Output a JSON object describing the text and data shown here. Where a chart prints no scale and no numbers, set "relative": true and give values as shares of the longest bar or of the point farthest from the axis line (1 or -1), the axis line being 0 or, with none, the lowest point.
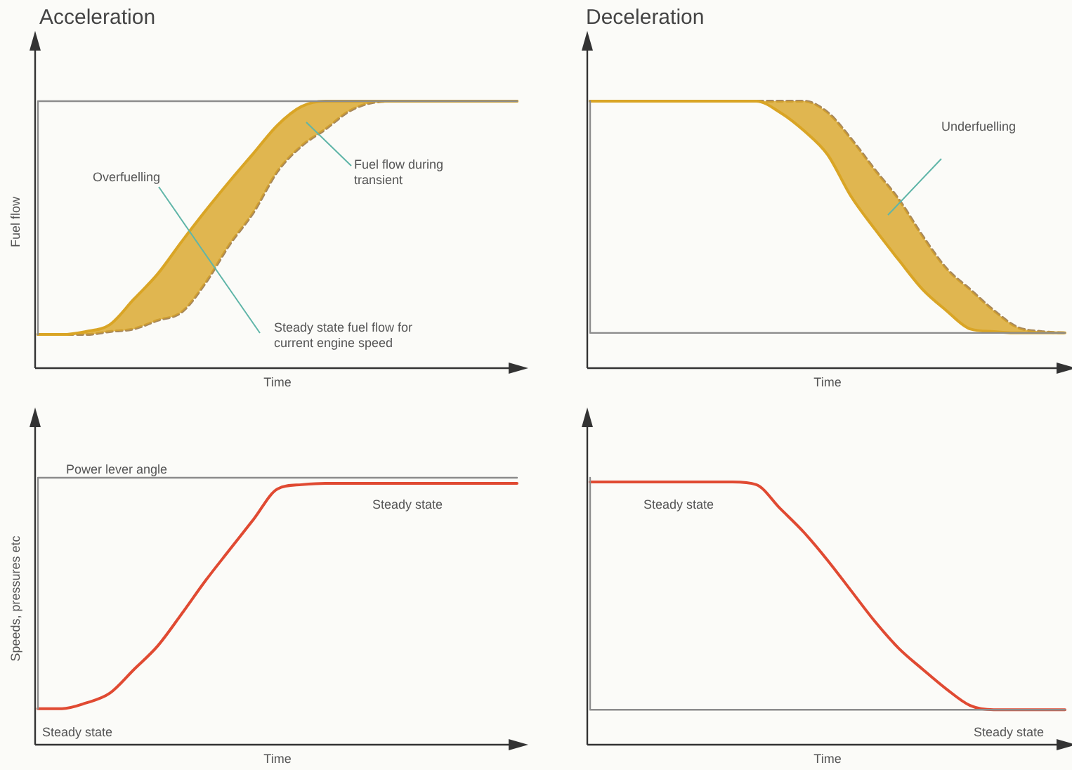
{
  "chart_data": [
    {
      "type": "line",
      "relative": true,
      "title": "Acceleration",
      "xlabel": "Time",
      "ylabel": "Fuel flow",
      "categories": [
        null,
        null,
        null,
        null,
        null,
        null,
        null,
        null,
        null,
        null,
        null,
        null,
        null,
        null,
        null,
        null,
        null,
        null,
        null,
        null,
        null
      ],
      "series": [
        {
          "type": "step",
          "color": "#8c8c8c",
          "values": [
            0.126,
            1,
            1,
            1,
            1,
            1,
            1,
            1,
            1,
            1,
            1,
            1,
            1,
            1,
            1,
            1,
            1,
            1,
            1,
            1,
            1
          ]
        },
        {
          "color": "#d9a526",
          "values": [
            0.126,
            0.126,
            0.137,
            0.163,
            0.258,
            0.353,
            0.474,
            0.59,
            0.7,
            0.805,
            0.91,
            0.98,
            1,
            1,
            1,
            1,
            1,
            1,
            1,
            1,
            1
          ],
          "lower": [
            0.126,
            0.126,
            0.126,
            0.137,
            0.147,
            0.179,
            0.21,
            0.32,
            0.463,
            0.584,
            0.737,
            0.832,
            0.895,
            0.963,
            0.995,
            1,
            1,
            1,
            1,
            1,
            1
          ],
          "upper": [
            0.126,
            0.126,
            0.137,
            0.163,
            0.258,
            0.353,
            0.474,
            0.59,
            0.7,
            0.805,
            0.91,
            0.98,
            1,
            1,
            1,
            1,
            1,
            1,
            1,
            1,
            1
          ]
        },
        {
          "color": "#a8885a",
          "line_style": "dashed",
          "values": [
            0.126,
            0.126,
            0.126,
            0.137,
            0.147,
            0.179,
            0.21,
            0.32,
            0.463,
            0.584,
            0.737,
            0.832,
            0.895,
            0.963,
            0.995,
            1,
            1,
            1,
            1,
            1,
            1
          ]
        }
      ],
      "annotations": [
        "Overfuelling",
        "Fuel flow during transient",
        "Steady state fuel flow for current engine speed"
      ]
    },
    {
      "type": "line",
      "relative": true,
      "title": "Deceleration",
      "xlabel": "Time",
      "categories": [
        null,
        null,
        null,
        null,
        null,
        null,
        null,
        null,
        null,
        null,
        null,
        null,
        null,
        null,
        null,
        null,
        null,
        null,
        null,
        null,
        null
      ],
      "series": [
        {
          "type": "step",
          "color": "#8c8c8c",
          "values": [
            1,
            0.132,
            0.132,
            0.132,
            0.132,
            0.132,
            0.132,
            0.132,
            0.132,
            0.132,
            0.132,
            0.132,
            0.132,
            0.132,
            0.132,
            0.132,
            0.132,
            0.132,
            0.132,
            0.132,
            0.132
          ]
        },
        {
          "color": "#d9a526",
          "values": [
            1,
            1,
            1,
            1,
            1,
            1,
            1,
            1,
            0.958,
            0.89,
            0.8,
            0.642,
            0.52,
            0.405,
            0.295,
            0.216,
            0.147,
            0.137,
            0.132,
            0.132,
            0.132
          ],
          "lower": [
            1,
            1,
            1,
            1,
            1,
            1,
            1,
            1,
            0.958,
            0.89,
            0.8,
            0.642,
            0.52,
            0.405,
            0.295,
            0.216,
            0.147,
            0.137,
            0.132,
            0.132,
            0.132
          ],
          "upper": [
            1,
            1,
            1,
            1,
            1,
            1,
            1,
            1,
            1,
            1,
            0.958,
            0.858,
            0.742,
            0.632,
            0.495,
            0.374,
            0.295,
            0.216,
            0.153,
            0.137,
            0.132
          ]
        },
        {
          "color": "#a8885a",
          "line_style": "dashed",
          "values": [
            1,
            1,
            1,
            1,
            1,
            1,
            1,
            1,
            1,
            1,
            0.958,
            0.858,
            0.742,
            0.632,
            0.495,
            0.374,
            0.295,
            0.216,
            0.153,
            0.137,
            0.132
          ]
        }
      ],
      "annotations": [
        "Underfuelling"
      ]
    },
    {
      "type": "line",
      "relative": true,
      "xlabel": "Time",
      "ylabel": "Speeds, pressures etc",
      "categories": [
        null,
        null,
        null,
        null,
        null,
        null,
        null,
        null,
        null,
        null,
        null,
        null,
        null,
        null,
        null,
        null,
        null,
        null,
        null,
        null,
        null
      ],
      "series": [
        {
          "type": "step",
          "color": "#8c8c8c",
          "values": [
            0.135,
            1,
            1,
            1,
            1,
            1,
            1,
            1,
            1,
            1,
            1,
            1,
            1,
            1,
            1,
            1,
            1,
            1,
            1,
            1,
            1
          ]
        },
        {
          "color": "#e04a32",
          "values": [
            0.135,
            0.135,
            0.156,
            0.193,
            0.281,
            0.37,
            0.49,
            0.615,
            0.73,
            0.844,
            0.958,
            0.974,
            0.979,
            0.979,
            0.979,
            0.979,
            0.979,
            0.979,
            0.979,
            0.979,
            0.979
          ]
        }
      ],
      "annotations": [
        "Power lever angle",
        "Steady state",
        "Steady state"
      ]
    },
    {
      "type": "line",
      "relative": true,
      "xlabel": "Time",
      "categories": [
        null,
        null,
        null,
        null,
        null,
        null,
        null,
        null,
        null,
        null,
        null,
        null,
        null,
        null,
        null,
        null,
        null,
        null,
        null,
        null,
        null
      ],
      "series": [
        {
          "type": "step",
          "color": "#8c8c8c",
          "values": [
            1,
            0.131,
            0.131,
            0.131,
            0.131,
            0.131,
            0.131,
            0.131,
            0.131,
            0.131,
            0.131,
            0.131,
            0.131,
            0.131,
            0.131,
            0.131,
            0.131,
            0.131,
            0.131,
            0.131,
            0.131
          ]
        },
        {
          "color": "#e04a32",
          "values": [
            0.984,
            0.984,
            0.984,
            0.984,
            0.984,
            0.984,
            0.984,
            0.974,
            0.885,
            0.796,
            0.691,
            0.576,
            0.461,
            0.361,
            0.283,
            0.209,
            0.147,
            0.131,
            0.131,
            0.131,
            0.131
          ]
        }
      ],
      "annotations": [
        "Steady state",
        "Steady state"
      ]
    }
  ]
}
